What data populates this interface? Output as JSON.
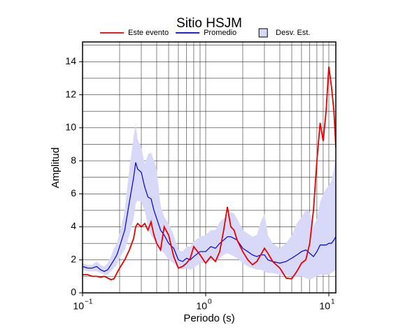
{
  "chart_data": {
    "type": "line",
    "title": "Sitio HSJM",
    "x_label": "Periodo (s)",
    "y_label": "Amplitud",
    "x": [
      0.1,
      0.11,
      0.12,
      0.13,
      0.14,
      0.15,
      0.16,
      0.17,
      0.18,
      0.19,
      0.2,
      0.22,
      0.24,
      0.26,
      0.27,
      0.28,
      0.3,
      0.32,
      0.34,
      0.36,
      0.38,
      0.4,
      0.43,
      0.46,
      0.5,
      0.55,
      0.6,
      0.65,
      0.7,
      0.75,
      0.8,
      0.9,
      1.0,
      1.1,
      1.2,
      1.3,
      1.4,
      1.5,
      1.6,
      1.7,
      1.8,
      2.0,
      2.2,
      2.4,
      2.6,
      2.8,
      3.0,
      3.2,
      3.5,
      4.0,
      4.5,
      5.0,
      5.5,
      6.0,
      6.5,
      7.0,
      7.5,
      8.0,
      8.5,
      9.0,
      9.5,
      10.0,
      10.5,
      11.0,
      11.4
    ],
    "series": [
      {
        "name": "Este evento",
        "color": "#e80000",
        "values": [
          1.1,
          1.1,
          1.0,
          1.0,
          0.95,
          1.0,
          0.9,
          0.8,
          0.85,
          1.2,
          1.5,
          2.0,
          2.6,
          3.3,
          4.0,
          4.2,
          4.0,
          4.2,
          3.8,
          4.3,
          3.5,
          3.0,
          2.6,
          4.0,
          3.5,
          2.2,
          1.5,
          1.6,
          1.8,
          2.1,
          2.8,
          2.3,
          1.8,
          2.2,
          1.9,
          2.5,
          3.8,
          5.2,
          4.0,
          3.8,
          3.2,
          2.5,
          2.0,
          1.7,
          1.9,
          2.3,
          2.7,
          2.4,
          1.9,
          1.5,
          0.9,
          0.85,
          1.3,
          1.8,
          2.0,
          3.0,
          5.0,
          8.0,
          10.3,
          9.2,
          11.0,
          13.7,
          12.5,
          11.0,
          8.8
        ]
      },
      {
        "name": "Promedio",
        "color": "#0000dd",
        "values": [
          1.6,
          1.5,
          1.5,
          1.6,
          1.4,
          1.3,
          1.4,
          1.7,
          2.0,
          2.3,
          2.8,
          3.8,
          5.5,
          7.0,
          7.9,
          7.5,
          7.3,
          6.4,
          5.8,
          5.7,
          5.0,
          4.5,
          3.8,
          3.5,
          3.0,
          2.7,
          2.0,
          1.9,
          2.1,
          2.0,
          2.2,
          2.5,
          2.5,
          2.8,
          2.7,
          3.0,
          3.2,
          3.4,
          3.4,
          3.3,
          3.2,
          2.7,
          2.5,
          2.3,
          2.2,
          2.3,
          2.3,
          2.0,
          1.9,
          1.8,
          1.9,
          2.1,
          2.3,
          2.5,
          2.6,
          2.4,
          2.2,
          2.5,
          2.9,
          2.9,
          2.9,
          3.0,
          3.0,
          3.2,
          3.4
        ]
      }
    ],
    "band": {
      "name": "Desv. Est.",
      "color": "#d8d8f8",
      "upper": [
        1.8,
        1.7,
        1.7,
        1.9,
        1.7,
        1.6,
        1.8,
        2.2,
        2.7,
        3.0,
        3.6,
        5.0,
        7.5,
        9.5,
        10.2,
        9.3,
        8.8,
        7.8,
        8.4,
        8.5,
        8.0,
        7.5,
        5.3,
        4.6,
        4.2,
        3.5,
        2.6,
        2.5,
        2.8,
        2.8,
        3.1,
        3.4,
        3.5,
        3.8,
        3.8,
        4.3,
        4.5,
        4.7,
        4.9,
        4.8,
        4.5,
        3.8,
        3.6,
        3.4,
        3.5,
        4.3,
        4.8,
        3.5,
        3.0,
        2.7,
        3.0,
        3.5,
        4.2,
        4.6,
        5.0,
        4.9,
        4.0,
        4.5,
        5.5,
        6.0,
        6.3,
        6.5,
        6.8,
        7.5,
        8.3
      ],
      "lower": [
        1.4,
        1.3,
        1.3,
        1.3,
        1.2,
        1.1,
        1.1,
        1.3,
        1.5,
        1.7,
        2.1,
        2.6,
        3.5,
        4.5,
        5.4,
        5.6,
        5.5,
        5.0,
        4.0,
        3.5,
        3.2,
        2.9,
        2.6,
        2.4,
        2.0,
        1.8,
        1.5,
        1.4,
        1.5,
        1.4,
        1.5,
        1.8,
        1.8,
        2.0,
        1.9,
        2.1,
        2.3,
        2.4,
        2.3,
        2.2,
        2.1,
        1.8,
        1.6,
        1.5,
        1.4,
        1.4,
        1.3,
        1.2,
        1.2,
        1.1,
        1.1,
        1.0,
        1.0,
        1.0,
        0.9,
        0.8,
        0.9,
        1.0,
        1.1,
        1.1,
        1.1,
        1.1,
        1.2,
        1.3,
        1.4
      ]
    },
    "log_x": true,
    "xlim": [
      0.1,
      11.4
    ],
    "ylim": [
      0,
      15.2
    ],
    "xticks": [
      {
        "value": 0.1,
        "label": "10",
        "exponent": "−1"
      },
      {
        "value": 1,
        "label": "10",
        "exponent": "0"
      },
      {
        "value": 10,
        "label": "10",
        "exponent": "1"
      }
    ],
    "x_minor_ticks": [
      0.2,
      0.3,
      0.4,
      0.5,
      0.6,
      0.7,
      0.8,
      0.9,
      2,
      3,
      4,
      5,
      6,
      7,
      8,
      9
    ],
    "yticks": [
      0,
      2,
      4,
      6,
      8,
      10,
      12,
      14
    ],
    "y_minor_ticks": [
      1,
      3,
      5,
      7,
      9,
      11,
      13,
      15
    ],
    "grid": true,
    "legend": "top"
  }
}
